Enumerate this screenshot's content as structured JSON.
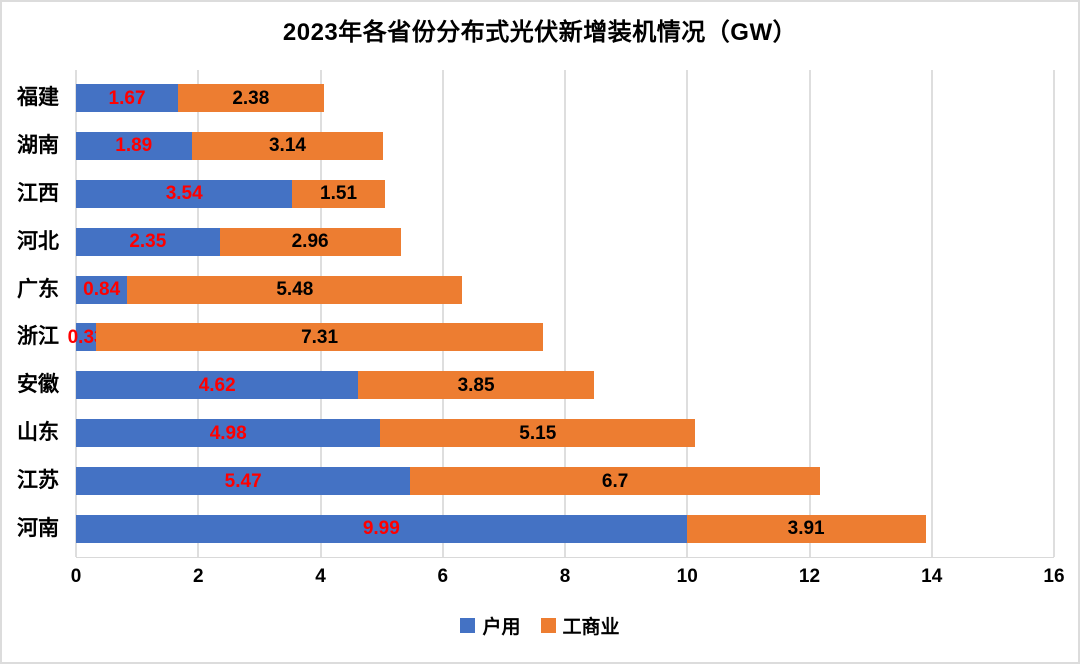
{
  "chart_data": {
    "type": "bar",
    "orientation": "horizontal",
    "stacked": true,
    "title": "2023年各省份分布式光伏新增装机情况（GW）",
    "categories": [
      "福建",
      "湖南",
      "江西",
      "河北",
      "广东",
      "浙江",
      "安徽",
      "山东",
      "江苏",
      "河南"
    ],
    "series": [
      {
        "name": "户用",
        "color": "#4472C4",
        "label_color": "#FF0000",
        "values": [
          1.67,
          1.89,
          3.54,
          2.35,
          0.84,
          0.33,
          4.62,
          4.98,
          5.47,
          9.99
        ]
      },
      {
        "name": "工商业",
        "color": "#ED7D31",
        "label_color": "#000000",
        "values": [
          2.38,
          3.14,
          1.51,
          2.96,
          5.48,
          7.31,
          3.85,
          5.15,
          6.7,
          3.91
        ]
      }
    ],
    "x_axis": {
      "min": 0,
      "max": 16,
      "step": 2,
      "tick_labels": [
        "0",
        "2",
        "4",
        "6",
        "8",
        "10",
        "12",
        "14",
        "16"
      ]
    },
    "grid": true,
    "gridline_color": "#dedede",
    "legend_position": "bottom",
    "data_labels": "inside-center"
  }
}
